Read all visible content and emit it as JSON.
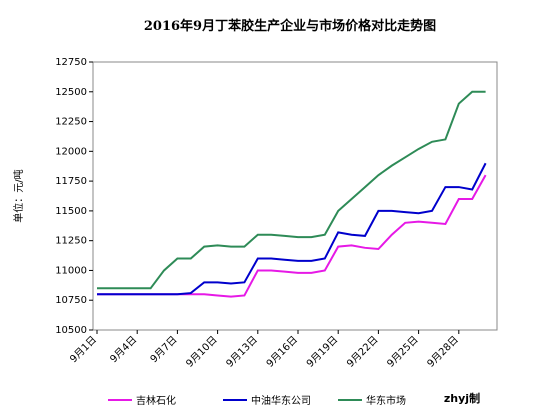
{
  "chart_data": {
    "type": "line",
    "title": "2016年9月丁苯胶生产企业与市场价格对比走势图",
    "y_label": "单位：元/吨",
    "annotation": "zhyj制",
    "categories": [
      "9月1日",
      null,
      null,
      "9月4日",
      null,
      null,
      "9月7日",
      null,
      null,
      "9月10日",
      null,
      null,
      "9月13日",
      null,
      null,
      "9月16日",
      null,
      null,
      "9月19日",
      null,
      null,
      "9月22日",
      null,
      null,
      "9月25日",
      null,
      null,
      "9月28日",
      null,
      null
    ],
    "series": [
      {
        "name": "吉林石化",
        "color": "#e619e6",
        "values": [
          10800,
          10800,
          10800,
          10800,
          10800,
          10800,
          10800,
          10800,
          10800,
          10790,
          10780,
          10790,
          11000,
          11000,
          10990,
          10980,
          10980,
          11000,
          11200,
          11210,
          11190,
          11180,
          11300,
          11400,
          11410,
          11400,
          11390,
          11600,
          11600,
          11800
        ]
      },
      {
        "name": "中油华东公司",
        "color": "#0000cc",
        "values": [
          10800,
          10800,
          10800,
          10800,
          10800,
          10800,
          10800,
          10810,
          10900,
          10900,
          10890,
          10900,
          11100,
          11100,
          11090,
          11080,
          11080,
          11100,
          11320,
          11300,
          11290,
          11500,
          11500,
          11490,
          11480,
          11500,
          11700,
          11700,
          11680,
          11900
        ]
      },
      {
        "name": "华东市场",
        "color": "#2e8b57",
        "values": [
          10850,
          10850,
          10850,
          10850,
          10850,
          11000,
          11100,
          11100,
          11200,
          11210,
          11200,
          11200,
          11300,
          11300,
          11290,
          11280,
          11280,
          11300,
          11500,
          11600,
          11700,
          11800,
          11880,
          11950,
          12020,
          12080,
          12100,
          12400,
          12500,
          12500
        ]
      }
    ],
    "ylim": [
      10500,
      12750
    ],
    "yticks": [
      10500,
      10750,
      11000,
      11250,
      11500,
      11750,
      12000,
      12250,
      12500,
      12750
    ]
  }
}
